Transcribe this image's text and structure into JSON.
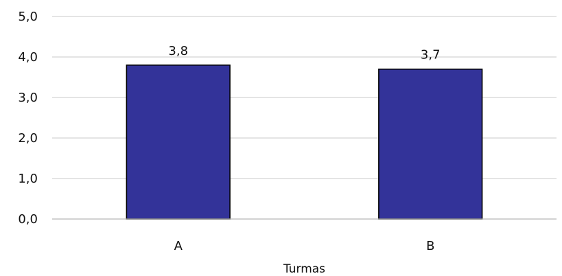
{
  "chart_data": {
    "type": "bar",
    "categories": [
      "A",
      "B"
    ],
    "values": [
      3.8,
      3.7
    ],
    "data_labels": [
      "3,8",
      "3,7"
    ],
    "title": "",
    "xlabel": "Turmas",
    "ylabel": "",
    "ylim": [
      0,
      5
    ],
    "y_ticks": [
      0,
      1,
      2,
      3,
      4,
      5
    ],
    "y_tick_labels": [
      "0,0",
      "1,0",
      "2,0",
      "3,0",
      "4,0",
      "5,0"
    ],
    "grid": true,
    "legend": "none",
    "colors": {
      "bar_fill": "#333399",
      "bar_stroke": "#000000",
      "gridline": "#c8c8c8",
      "axis": "#b8b8b8",
      "text": "#111111"
    }
  }
}
